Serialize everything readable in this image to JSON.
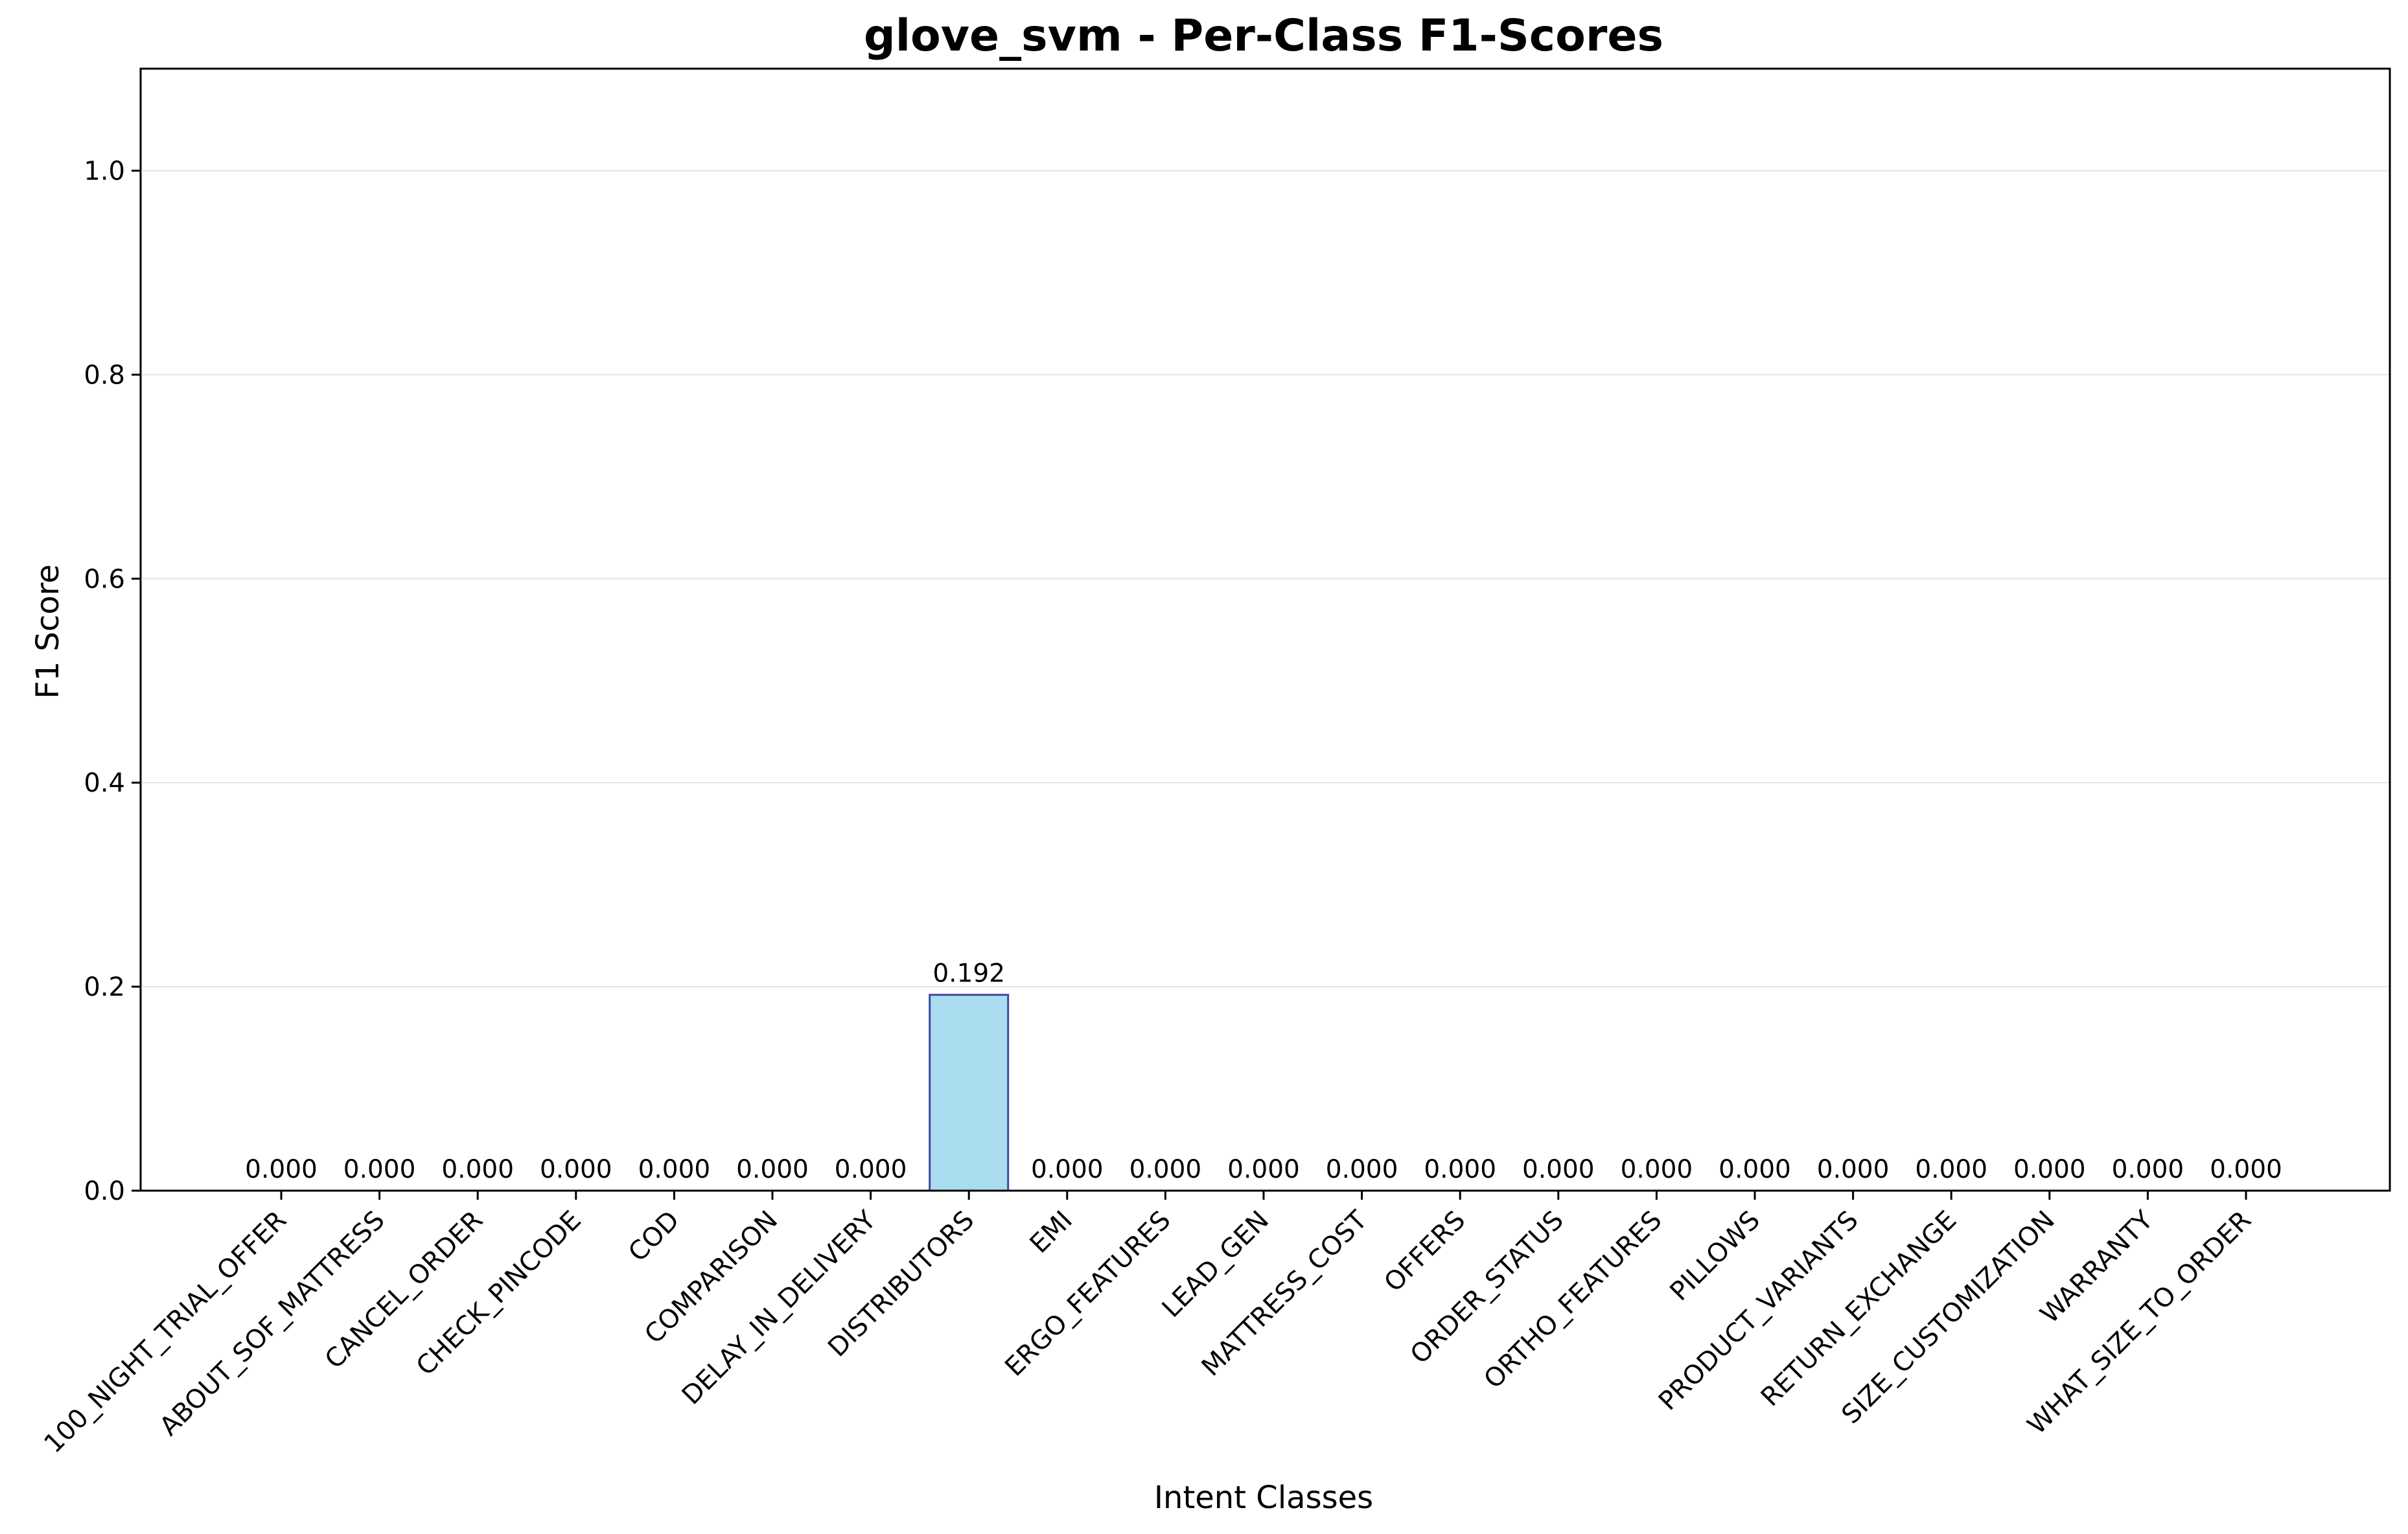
{
  "chart_data": {
    "type": "bar",
    "title": "glove_svm - Per-Class F1-Scores",
    "xlabel": "Intent Classes",
    "ylabel": "F1 Score",
    "ylim": [
      0,
      1.1
    ],
    "yticks": [
      "0.0",
      "0.2",
      "0.4",
      "0.6",
      "0.8",
      "1.0"
    ],
    "grid": "y-major",
    "categories": [
      "100_NIGHT_TRIAL_OFFER",
      "ABOUT_SOF_MATTRESS",
      "CANCEL_ORDER",
      "CHECK_PINCODE",
      "COD",
      "COMPARISON",
      "DELAY_IN_DELIVERY",
      "DISTRIBUTORS",
      "EMI",
      "ERGO_FEATURES",
      "LEAD_GEN",
      "MATTRESS_COST",
      "OFFERS",
      "ORDER_STATUS",
      "ORTHO_FEATURES",
      "PILLOWS",
      "PRODUCT_VARIANTS",
      "RETURN_EXCHANGE",
      "SIZE_CUSTOMIZATION",
      "WARRANTY",
      "WHAT_SIZE_TO_ORDER"
    ],
    "values": [
      0,
      0,
      0,
      0,
      0,
      0,
      0,
      0.192,
      0,
      0,
      0,
      0,
      0,
      0,
      0,
      0,
      0,
      0,
      0,
      0,
      0
    ],
    "value_labels": [
      "0.000",
      "0.000",
      "0.000",
      "0.000",
      "0.000",
      "0.000",
      "0.000",
      "0.192",
      "0.000",
      "0.000",
      "0.000",
      "0.000",
      "0.000",
      "0.000",
      "0.000",
      "0.000",
      "0.000",
      "0.000",
      "0.000",
      "0.000",
      "0.000"
    ],
    "colors": {
      "bar_fill": "#a8dcee",
      "bar_edge": "#3f4a9e",
      "grid": "#e6e6e6",
      "axis": "#000000"
    }
  }
}
